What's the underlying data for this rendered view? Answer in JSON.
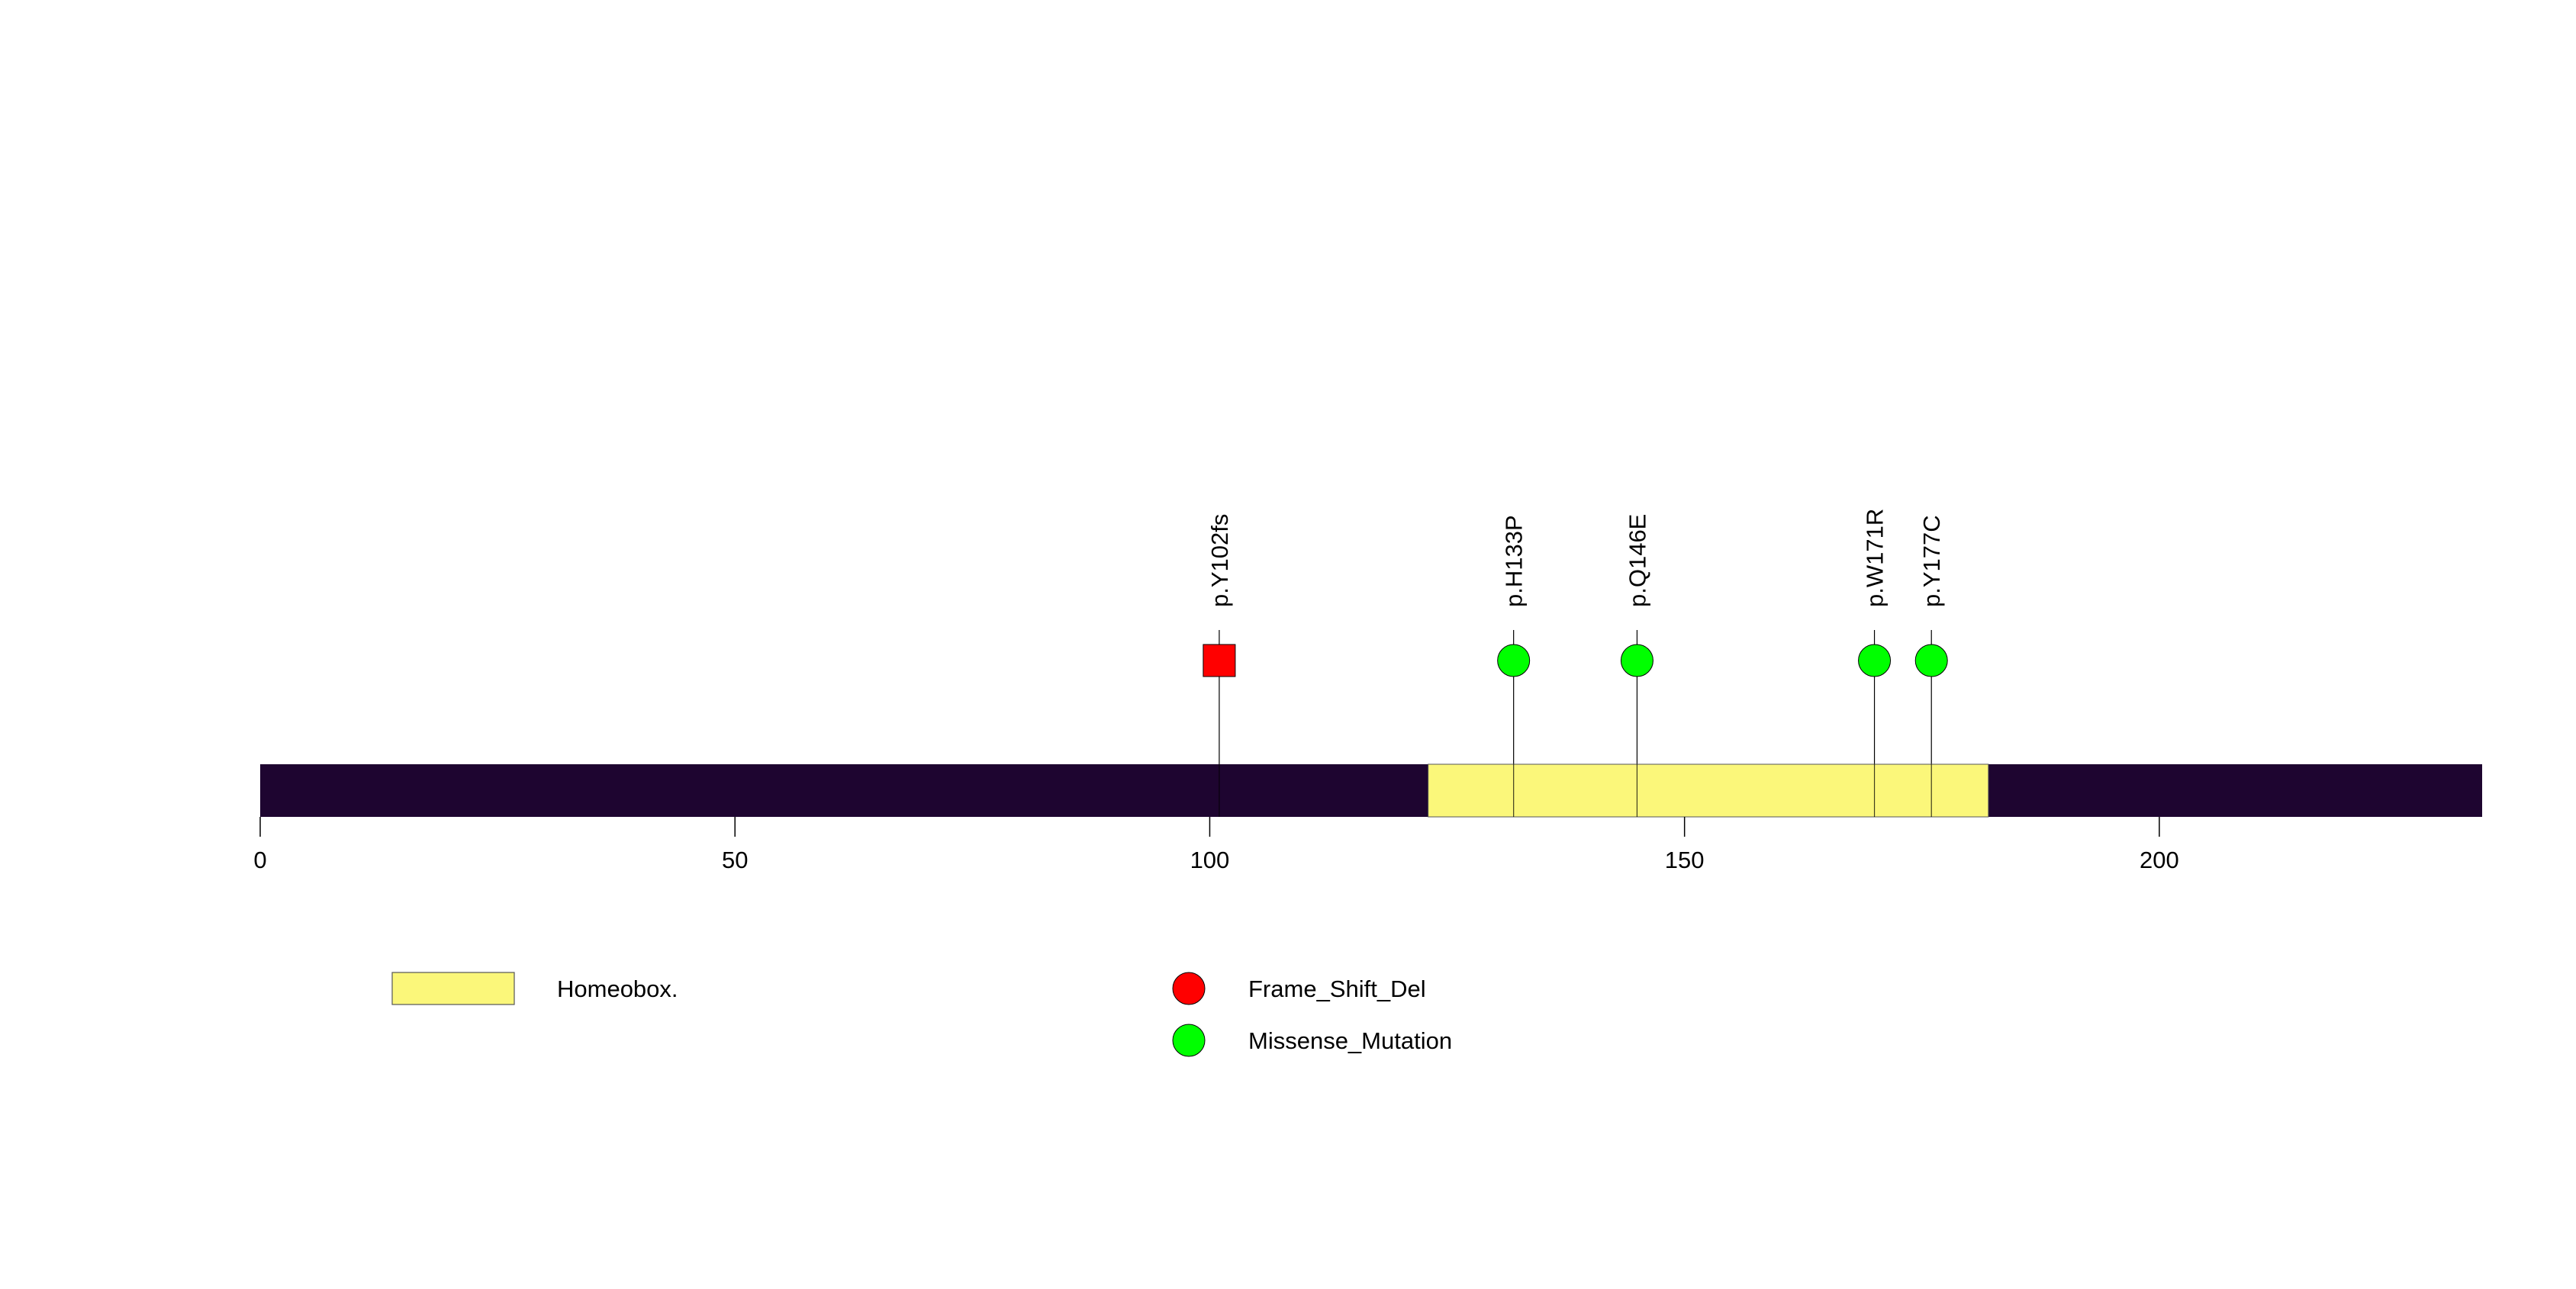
{
  "chart_data": {
    "type": "lollipop",
    "protein_length": 234,
    "xlim": [
      0,
      234
    ],
    "x_ticks": [
      0,
      50,
      100,
      150,
      200
    ],
    "x_tick_labels": [
      "0",
      "50",
      "100",
      "150",
      "200"
    ],
    "backbone_color": "#1e0530",
    "domains": [
      {
        "name": "Homeobox.",
        "start": 123,
        "end": 182,
        "color": "#fbf77a"
      }
    ],
    "mutations": [
      {
        "label": "p.Y102fs",
        "position": 101,
        "type": "Frame_Shift_Del",
        "shape": "square"
      },
      {
        "label": "p.H133P",
        "position": 132,
        "type": "Missense_Mutation",
        "shape": "circle"
      },
      {
        "label": "p.Q146E",
        "position": 145,
        "type": "Missense_Mutation",
        "shape": "circle"
      },
      {
        "label": "p.W171R",
        "position": 170,
        "type": "Missense_Mutation",
        "shape": "circle"
      },
      {
        "label": "p.Y177C",
        "position": 176,
        "type": "Missense_Mutation",
        "shape": "circle"
      }
    ],
    "legend": {
      "domains": [
        {
          "label": "Homeobox.",
          "color": "#fbf77a"
        }
      ],
      "mutation_types": [
        {
          "label": "Frame_Shift_Del",
          "color": "#ff0000"
        },
        {
          "label": "Missense_Mutation",
          "color": "#00ff00"
        }
      ]
    }
  }
}
